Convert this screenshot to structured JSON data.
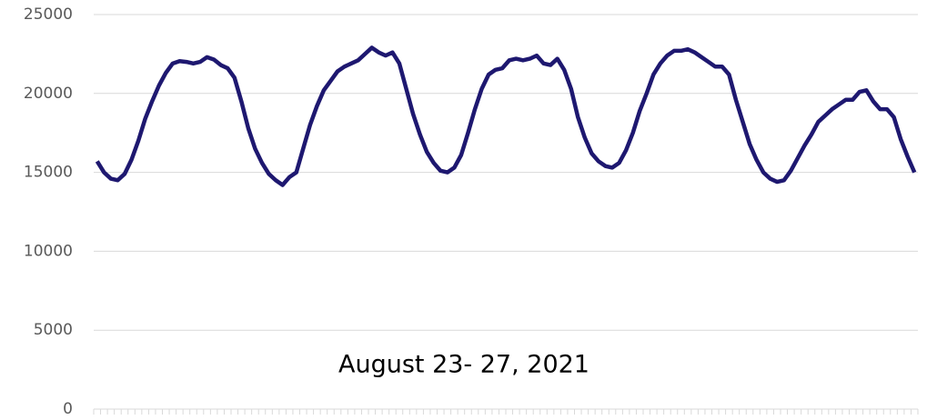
{
  "chart_data": {
    "type": "line",
    "annotation": "August 23- 27, 2021",
    "categories": [
      null,
      null,
      null,
      null,
      null,
      null,
      null,
      null,
      null,
      null,
      null,
      null,
      null,
      null,
      null,
      null,
      null,
      null,
      null,
      null,
      null,
      null,
      null,
      null,
      null,
      null,
      null,
      null,
      null,
      null,
      null,
      null,
      null,
      null,
      null,
      null,
      null,
      null,
      null,
      null,
      null,
      null,
      null,
      null,
      null,
      null,
      null,
      null,
      null,
      null,
      null,
      null,
      null,
      null,
      null,
      null,
      null,
      null,
      null,
      null,
      null,
      null,
      null,
      null,
      null,
      null,
      null,
      null,
      null,
      null,
      null,
      null,
      null,
      null,
      null,
      null,
      null,
      null,
      null,
      null,
      null,
      null,
      null,
      null,
      null,
      null,
      null,
      null,
      null,
      null,
      null,
      null,
      null,
      null,
      null,
      null,
      null,
      null,
      null,
      null,
      null,
      null,
      null,
      null,
      null,
      null,
      null,
      null,
      null,
      null,
      null,
      null,
      null,
      null,
      null,
      null,
      null,
      null,
      null,
      null
    ],
    "series": [
      {
        "color": "#1e1870",
        "values": [
          15700,
          15000,
          14600,
          14500,
          14900,
          15800,
          17000,
          18400,
          19500,
          20500,
          21300,
          21900,
          22050,
          22000,
          21900,
          22000,
          22300,
          22150,
          21800,
          21600,
          21000,
          19500,
          17800,
          16500,
          15600,
          14900,
          14500,
          14200,
          14700,
          15000,
          16500,
          18000,
          19200,
          20200,
          20800,
          21400,
          21700,
          21900,
          22100,
          22500,
          22900,
          22600,
          22400,
          22600,
          21900,
          20300,
          18700,
          17400,
          16300,
          15600,
          15100,
          15000,
          15300,
          16100,
          17500,
          19000,
          20300,
          21200,
          21500,
          21600,
          22100,
          22200,
          22100,
          22200,
          22400,
          21900,
          21800,
          22200,
          21500,
          20300,
          18500,
          17200,
          16200,
          15700,
          15400,
          15300,
          15600,
          16400,
          17500,
          18900,
          20000,
          21200,
          21900,
          22400,
          22700,
          22700,
          22800,
          22600,
          22300,
          22000,
          21700,
          21700,
          21200,
          19600,
          18200,
          16800,
          15800,
          15000,
          14600,
          14400,
          14500,
          15100,
          15900,
          16700,
          17400,
          18200,
          18600,
          19000,
          19300,
          19600,
          19600,
          20100,
          20200,
          19500,
          19000,
          19000,
          18500,
          17100,
          16000,
          15000
        ]
      }
    ],
    "ylim": [
      0,
      25000
    ],
    "yticks": [
      0,
      5000,
      10000,
      15000,
      20000,
      25000
    ],
    "grid": true
  }
}
